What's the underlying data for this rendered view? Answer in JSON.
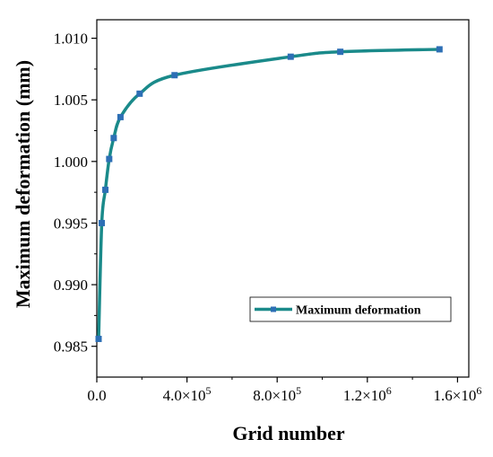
{
  "chart_data": {
    "type": "line",
    "title": "",
    "xlabel": "Grid number",
    "ylabel": "Maximum deformation (mm)",
    "xlim": [
      0,
      1650000
    ],
    "ylim": [
      0.9825,
      1.0115
    ],
    "x_ticks": [
      {
        "value": 0,
        "label": "0.0"
      },
      {
        "value": 400000,
        "label": "4.0×10",
        "exp": "5"
      },
      {
        "value": 800000,
        "label": "8.0×10",
        "exp": "5"
      },
      {
        "value": 1200000,
        "label": "1.2×10",
        "exp": "6"
      },
      {
        "value": 1600000,
        "label": "1.6×10",
        "exp": "6"
      }
    ],
    "y_ticks": [
      {
        "value": 0.985,
        "label": "0.985"
      },
      {
        "value": 0.99,
        "label": "0.990"
      },
      {
        "value": 0.995,
        "label": "0.995"
      },
      {
        "value": 1.0,
        "label": "1.000"
      },
      {
        "value": 1.005,
        "label": "1.005"
      },
      {
        "value": 1.01,
        "label": "1.010"
      }
    ],
    "grid": false,
    "legend_position": "bottom-right",
    "series": [
      {
        "name": "Maximum deformation",
        "color": "#1a8a8a",
        "marker_color": "#2d6fb5",
        "x": [
          8000,
          22000,
          38000,
          55000,
          75000,
          105000,
          190000,
          345000,
          860000,
          1080000,
          1520000
        ],
        "y": [
          0.9856,
          0.995,
          0.9977,
          1.0002,
          1.0019,
          1.0036,
          1.0055,
          1.007,
          1.0085,
          1.0089,
          1.0091
        ]
      }
    ]
  }
}
